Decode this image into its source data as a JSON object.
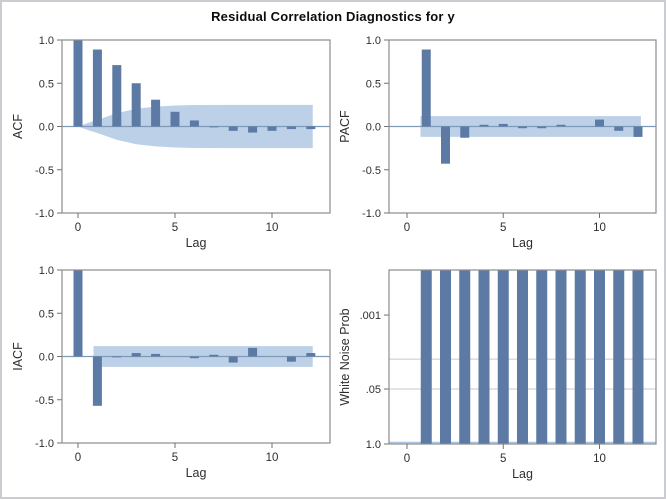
{
  "figure": {
    "title": "Residual Correlation Diagnostics for y"
  },
  "colors": {
    "bar": "#5d7aa4",
    "band": "#bcd1e8",
    "zero_line": "#7f99b8",
    "frame": "#8c8c8c",
    "tick": "#707070",
    "tick_text": "#2e2e2e",
    "grid": "#c9c9c9",
    "baseline": "#aac2de",
    "outer_border": "#c9cdd1"
  },
  "chart_data": [
    {
      "id": "acf",
      "type": "bar",
      "scale": "correlation",
      "ylabel": "ACF",
      "xlabel": "Lag",
      "ylim": [
        -1.0,
        1.0
      ],
      "yticks": [
        "-1.0",
        "-0.5",
        "0.0",
        "0.5",
        "1.0"
      ],
      "ytick_values": [
        -1.0,
        -0.5,
        0.0,
        0.5,
        1.0
      ],
      "xticks": [
        "0",
        "5",
        "10"
      ],
      "xtick_values": [
        0,
        5,
        10
      ],
      "lags": [
        0,
        1,
        2,
        3,
        4,
        5,
        6,
        7,
        8,
        9,
        10,
        11,
        12
      ],
      "values": [
        1.0,
        0.89,
        0.71,
        0.5,
        0.31,
        0.17,
        0.07,
        -0.01,
        -0.05,
        -0.07,
        -0.05,
        -0.03,
        -0.03
      ],
      "band": {
        "kind": "funnel",
        "lags": [
          0,
          0.5,
          1,
          2,
          3,
          4,
          5,
          6,
          8,
          12.1
        ],
        "half_width": [
          0,
          0.04,
          0.075,
          0.155,
          0.205,
          0.23,
          0.243,
          0.248,
          0.25,
          0.25
        ]
      }
    },
    {
      "id": "pacf",
      "type": "bar",
      "scale": "correlation",
      "ylabel": "PACF",
      "xlabel": "Lag",
      "ylim": [
        -1.0,
        1.0
      ],
      "yticks": [
        "-1.0",
        "-0.5",
        "0.0",
        "0.5",
        "1.0"
      ],
      "ytick_values": [
        -1.0,
        -0.5,
        0.0,
        0.5,
        1.0
      ],
      "xticks": [
        "0",
        "5",
        "10"
      ],
      "xtick_values": [
        0,
        5,
        10
      ],
      "lags": [
        1,
        2,
        3,
        4,
        5,
        6,
        7,
        8,
        9,
        10,
        11,
        12
      ],
      "values": [
        0.89,
        -0.43,
        -0.13,
        0.02,
        0.03,
        -0.02,
        -0.02,
        0.02,
        0.0,
        0.08,
        -0.05,
        -0.12
      ],
      "band": {
        "kind": "constant",
        "half_width": 0.12,
        "from_lag": 0.7,
        "to_lag": 12.15
      }
    },
    {
      "id": "iacf",
      "type": "bar",
      "scale": "correlation",
      "ylabel": "IACF",
      "xlabel": "Lag",
      "ylim": [
        -1.0,
        1.0
      ],
      "yticks": [
        "-1.0",
        "-0.5",
        "0.0",
        "0.5",
        "1.0"
      ],
      "ytick_values": [
        -1.0,
        -0.5,
        0.0,
        0.5,
        1.0
      ],
      "xticks": [
        "0",
        "5",
        "10"
      ],
      "xtick_values": [
        0,
        5,
        10
      ],
      "lags": [
        0,
        1,
        2,
        3,
        4,
        5,
        6,
        7,
        8,
        9,
        10,
        11,
        12
      ],
      "values": [
        1.0,
        -0.57,
        -0.01,
        0.04,
        0.03,
        0.0,
        -0.02,
        0.02,
        -0.07,
        0.1,
        0.0,
        -0.06,
        0.04
      ],
      "band": {
        "kind": "constant",
        "half_width": 0.12,
        "from_lag": 0.8,
        "to_lag": 12.1
      }
    },
    {
      "id": "wnp",
      "type": "bar",
      "scale": "probability",
      "ylabel": "White Noise Prob",
      "xlabel": "Lag",
      "yticks": [
        ".001",
        ".05",
        "1.0"
      ],
      "xticks": [
        "0",
        "5",
        "10"
      ],
      "xtick_values": [
        0,
        5,
        10
      ],
      "lags": [
        1,
        2,
        3,
        4,
        5,
        6,
        7,
        8,
        9,
        10,
        11,
        12
      ],
      "bars_full_height": true
    }
  ]
}
